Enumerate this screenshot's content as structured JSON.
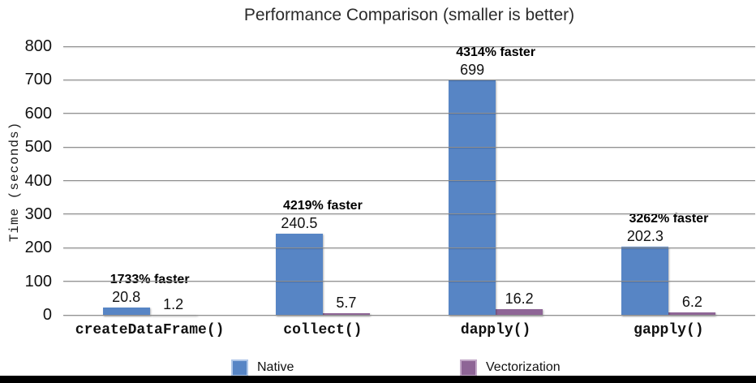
{
  "chart_data": {
    "type": "bar",
    "title": "Performance Comparison (smaller is better)",
    "xlabel": "",
    "ylabel": "Time (seconds)",
    "ylim": [
      0,
      800
    ],
    "ytick_step": 100,
    "grid": true,
    "legend_position": "bottom",
    "categories": [
      "createDataFrame()",
      "collect()",
      "dapply()",
      "gapply()"
    ],
    "series": [
      {
        "name": "Native",
        "color": "#5785c5",
        "border_color": "#7ba3d4",
        "values": [
          20.8,
          240.5,
          699,
          202.3
        ],
        "labels": [
          "20.8",
          "240.5",
          "699",
          "202.3"
        ]
      },
      {
        "name": "Vectorization",
        "color": "#8e6596",
        "border_color": "#b违",
        "values": [
          1.2,
          5.7,
          16.2,
          6.2
        ],
        "labels": [
          "1.2",
          "5.7",
          "16.2",
          "6.2"
        ]
      }
    ],
    "annotations": [
      "1733% faster",
      "4219% faster",
      "4314% faster",
      "3262% faster"
    ]
  },
  "colors": {
    "gridline": "#8f8f8f",
    "native_fill": "#5785c5",
    "native_border": "#aec6e8",
    "vectorization_fill": "#8e6596",
    "vectorization_border": "#c2a7c7",
    "bottom_bar": "#000000"
  }
}
